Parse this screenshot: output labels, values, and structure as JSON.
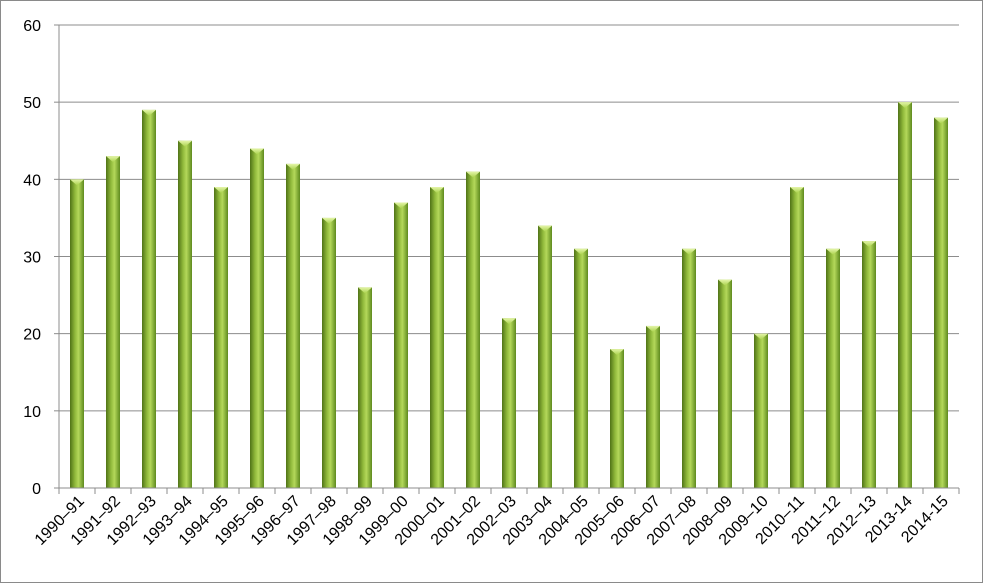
{
  "chart_data": {
    "type": "bar",
    "title": "",
    "xlabel": "",
    "ylabel": "",
    "ylim": [
      0,
      60
    ],
    "yticks": [
      0,
      10,
      20,
      30,
      40,
      50,
      60
    ],
    "grid": true,
    "legend": "none",
    "bar_color": "#8fb83a",
    "categories": [
      "1990–91",
      "1991–92",
      "1992–93",
      "1993–94",
      "1994–95",
      "1995–96",
      "1996–97",
      "1997–98",
      "1998–99",
      "1999–00",
      "2000–01",
      "2001–02",
      "2002–03",
      "2003–04",
      "2004–05",
      "2005–06",
      "2006–07",
      "2007–08",
      "2008–09",
      "2009–10",
      "2010–11",
      "2011–12",
      "2012–13",
      "2013-14",
      "2014-15"
    ],
    "values": [
      40,
      43,
      49,
      45,
      39,
      44,
      42,
      35,
      26,
      37,
      39,
      41,
      22,
      34,
      31,
      18,
      21,
      31,
      27,
      20,
      39,
      31,
      32,
      50,
      48
    ]
  }
}
